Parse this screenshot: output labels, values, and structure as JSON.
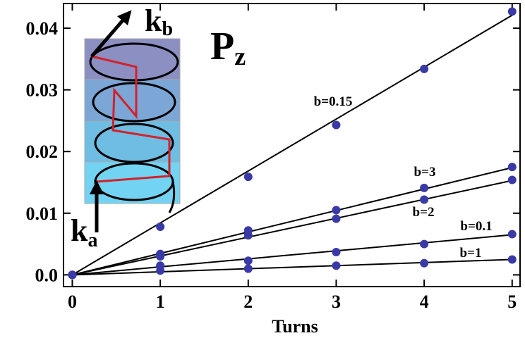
{
  "chart_data": {
    "type": "scatter",
    "x_label": "Turns",
    "x": [
      0,
      1,
      2,
      3,
      4,
      5
    ],
    "fit_x": [
      0,
      5
    ],
    "xlim": [
      -0.1,
      5.09
    ],
    "xticks": [
      0,
      1,
      2,
      3,
      4,
      5
    ],
    "ylim": [
      -0.0019,
      0.044
    ],
    "yticks": [
      {
        "value": 0,
        "label": "0.0"
      },
      0.01,
      0.02,
      0.03,
      0.04
    ],
    "point_color": "#3a3aa6",
    "line_color": "#000000",
    "series": [
      {
        "name": "b=0.15",
        "values": [
          0,
          0.0078,
          0.0159,
          0.0243,
          0.0334,
          0.0427
        ],
        "fit": [
          0,
          0.0421
        ]
      },
      {
        "name": "b=3",
        "values": [
          0,
          0.0034,
          0.0072,
          0.0105,
          0.0141,
          0.0175
        ],
        "fit": [
          0,
          0.0174
        ]
      },
      {
        "name": "b=2",
        "values": [
          0,
          0.003,
          0.0064,
          0.0091,
          0.0122,
          0.0154
        ],
        "fit": [
          0,
          0.0153
        ]
      },
      {
        "name": "b=0.1",
        "values": [
          0,
          0.0015,
          0.0023,
          0.0037,
          0.005,
          0.0066
        ],
        "fit": [
          0,
          0.0065
        ]
      },
      {
        "name": "b=1",
        "values": [
          0,
          0.0007,
          0.001,
          0.0015,
          0.0019,
          0.0025
        ],
        "fit": [
          0,
          0.0025
        ]
      }
    ],
    "annotations": [
      {
        "text": "k",
        "sub": "b"
      },
      {
        "text": "P",
        "sub": "z"
      },
      {
        "text": "k",
        "sub": "a"
      }
    ]
  }
}
